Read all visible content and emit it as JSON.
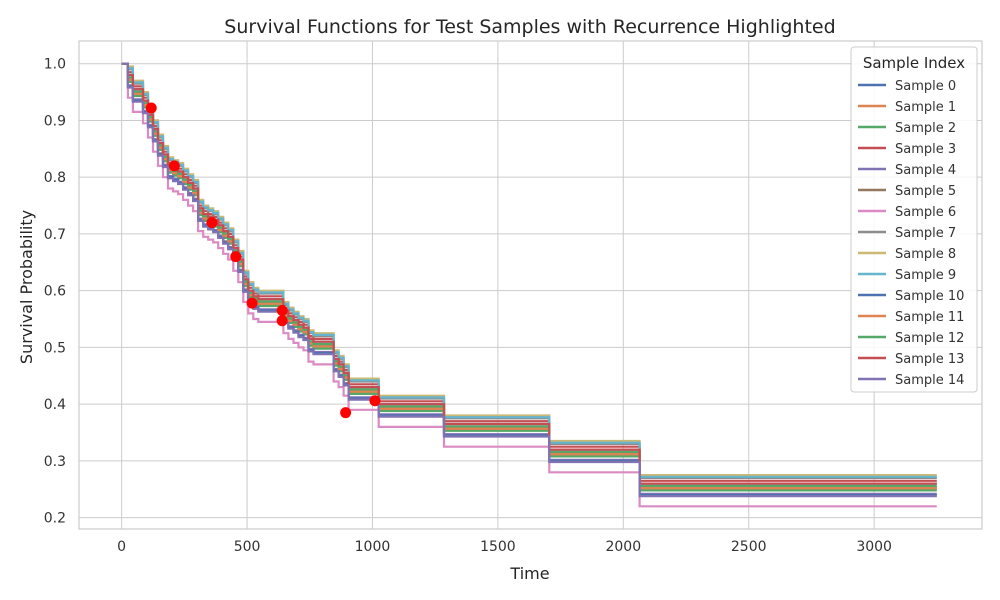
{
  "chart_data": {
    "type": "line",
    "title": "Survival Functions for Test Samples with Recurrence Highlighted",
    "xlabel": "Time",
    "ylabel": "Survival Probability",
    "xlim": [
      -170,
      3430
    ],
    "ylim": [
      0.18,
      1.04
    ],
    "xticks": [
      0,
      500,
      1000,
      1500,
      2000,
      2500,
      3000
    ],
    "xtick_labels": [
      "0",
      "500",
      "1000",
      "1500",
      "2000",
      "2500",
      "3000"
    ],
    "yticks": [
      0.2,
      0.3,
      0.4,
      0.5,
      0.6,
      0.7,
      0.8,
      0.9,
      1.0
    ],
    "ytick_labels": [
      "0.2",
      "0.3",
      "0.4",
      "0.5",
      "0.6",
      "0.7",
      "0.8",
      "0.9",
      "1.0"
    ],
    "grid": true,
    "legend_title": "Sample Index",
    "legend_position": "upper-right",
    "base_curve": {
      "x": [
        0,
        25,
        45,
        85,
        105,
        125,
        145,
        165,
        185,
        205,
        225,
        245,
        265,
        285,
        305,
        325,
        345,
        365,
        385,
        405,
        425,
        445,
        465,
        485,
        505,
        525,
        545,
        565,
        585,
        605,
        625,
        645,
        665,
        685,
        705,
        725,
        745,
        765,
        785,
        805,
        825,
        845,
        865,
        885,
        905,
        925,
        945,
        965,
        985,
        1005,
        1025,
        1045,
        1145,
        1285,
        1645,
        1705,
        2065,
        3250
      ],
      "y": [
        1.0,
        0.98,
        0.955,
        0.935,
        0.91,
        0.885,
        0.86,
        0.84,
        0.82,
        0.815,
        0.81,
        0.8,
        0.79,
        0.78,
        0.745,
        0.735,
        0.73,
        0.725,
        0.715,
        0.705,
        0.695,
        0.675,
        0.655,
        0.62,
        0.6,
        0.59,
        0.585,
        0.585,
        0.585,
        0.585,
        0.585,
        0.565,
        0.555,
        0.548,
        0.54,
        0.535,
        0.515,
        0.51,
        0.51,
        0.51,
        0.51,
        0.48,
        0.47,
        0.455,
        0.43,
        0.43,
        0.43,
        0.43,
        0.43,
        0.43,
        0.4,
        0.4,
        0.4,
        0.365,
        0.365,
        0.32,
        0.26,
        0.26
      ]
    },
    "series": [
      {
        "name": "Sample 0",
        "color": "#4c72b0",
        "offset": 0.0
      },
      {
        "name": "Sample 1",
        "color": "#dd8452",
        "offset": -0.01
      },
      {
        "name": "Sample 2",
        "color": "#55a868",
        "offset": -0.012
      },
      {
        "name": "Sample 3",
        "color": "#c44e52",
        "offset": 0.005
      },
      {
        "name": "Sample 4",
        "color": "#8172b3",
        "offset": -0.018
      },
      {
        "name": "Sample 5",
        "color": "#937860",
        "offset": -0.006
      },
      {
        "name": "Sample 6",
        "color": "#da8bc3",
        "offset": -0.04
      },
      {
        "name": "Sample 7",
        "color": "#8c8c8c",
        "offset": 0.01
      },
      {
        "name": "Sample 8",
        "color": "#ccb974",
        "offset": 0.015
      },
      {
        "name": "Sample 9",
        "color": "#64b5cd",
        "offset": 0.012
      },
      {
        "name": "Sample 10",
        "color": "#4c72b0",
        "offset": -0.02
      },
      {
        "name": "Sample 11",
        "color": "#dd8452",
        "offset": -0.008
      },
      {
        "name": "Sample 12",
        "color": "#55a868",
        "offset": -0.004
      },
      {
        "name": "Sample 13",
        "color": "#c44e52",
        "offset": 0.0
      },
      {
        "name": "Sample 14",
        "color": "#8172b3",
        "offset": -0.022
      }
    ],
    "recurrence_points": {
      "color": "#ff0000",
      "x": [
        118,
        210,
        360,
        455,
        520,
        640,
        640,
        893,
        1010
      ],
      "y": [
        0.922,
        0.82,
        0.72,
        0.66,
        0.578,
        0.565,
        0.547,
        0.385,
        0.406
      ]
    }
  }
}
